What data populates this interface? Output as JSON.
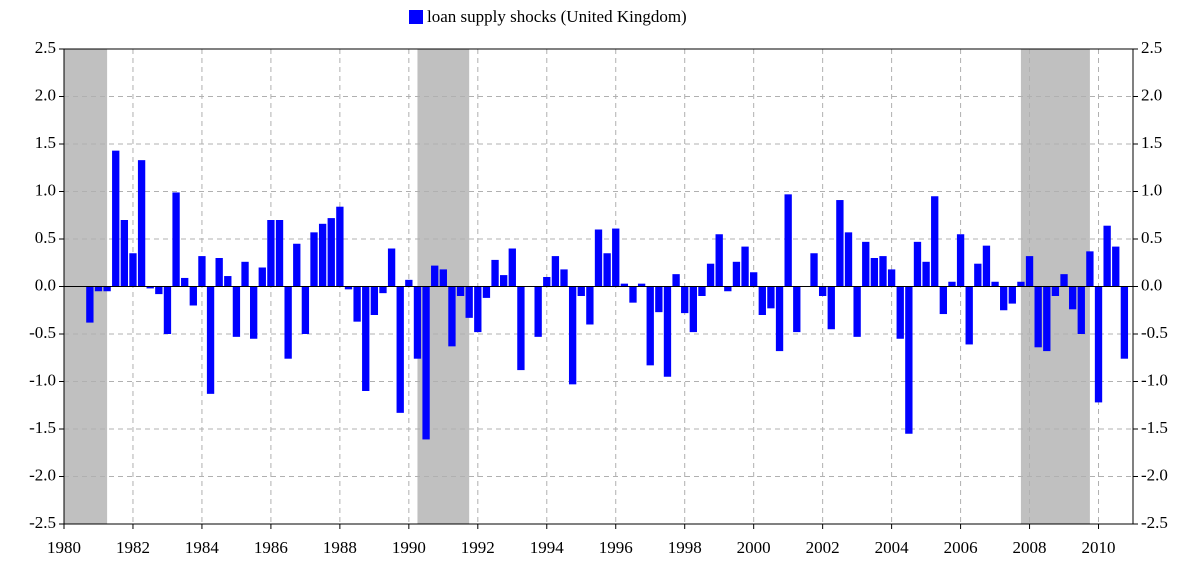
{
  "chart_data": {
    "type": "bar",
    "legend_position": "top",
    "series": [
      {
        "name": "loan supply shocks (United Kingdom)",
        "color": "#0000ff",
        "values": [
          -0.38,
          -0.05,
          -0.05,
          1.43,
          0.7,
          0.35,
          1.33,
          -0.02,
          -0.08,
          -0.5,
          0.99,
          0.09,
          -0.2,
          0.32,
          -1.13,
          0.3,
          0.11,
          -0.53,
          0.26,
          -0.55,
          0.2,
          0.7,
          0.7,
          -0.76,
          0.45,
          -0.5,
          0.57,
          0.66,
          0.72,
          0.84,
          -0.03,
          -0.37,
          -1.1,
          -0.3,
          -0.07,
          0.4,
          -1.33,
          0.07,
          -0.76,
          -1.61,
          0.22,
          0.18,
          -0.63,
          -0.1,
          -0.33,
          -0.48,
          -0.12,
          0.28,
          0.12,
          0.4,
          -0.88,
          0.0,
          -0.53,
          0.1,
          0.32,
          0.18,
          -1.03,
          -0.1,
          -0.4,
          0.6,
          0.35,
          0.61,
          0.03,
          -0.17,
          0.03,
          -0.83,
          -0.27,
          -0.95,
          0.13,
          -0.28,
          -0.48,
          -0.1,
          0.24,
          0.55,
          -0.05,
          0.26,
          0.42,
          0.15,
          -0.3,
          -0.23,
          -0.68,
          0.97,
          -0.48,
          0.0,
          0.35,
          -0.1,
          -0.45,
          0.91,
          0.57,
          -0.53,
          0.47,
          0.3,
          0.32,
          0.18,
          -0.55,
          -1.55,
          0.47,
          0.26,
          0.95,
          -0.29,
          0.05,
          0.55,
          -0.61,
          0.24,
          0.43,
          0.05,
          -0.25,
          -0.18,
          0.05,
          0.32,
          -0.64,
          -0.68,
          -0.1,
          0.13,
          -0.24,
          -0.5,
          0.37,
          -1.22,
          0.64,
          0.42,
          -0.76
        ]
      }
    ],
    "x": [
      1980.75,
      1981,
      1981.25,
      1981.5,
      1981.75,
      1982,
      1982.25,
      1982.5,
      1982.75,
      1983,
      1983.25,
      1983.5,
      1983.75,
      1984,
      1984.25,
      1984.5,
      1984.75,
      1985,
      1985.25,
      1985.5,
      1985.75,
      1986,
      1986.25,
      1986.5,
      1986.75,
      1987,
      1987.25,
      1987.5,
      1987.75,
      1988,
      1988.25,
      1988.5,
      1988.75,
      1989,
      1989.25,
      1989.5,
      1989.75,
      1990,
      1990.25,
      1990.5,
      1990.75,
      1991,
      1991.25,
      1991.5,
      1991.75,
      1992,
      1992.25,
      1992.5,
      1992.75,
      1993,
      1993.25,
      1993.5,
      1993.75,
      1994,
      1994.25,
      1994.5,
      1994.75,
      1995,
      1995.25,
      1995.5,
      1995.75,
      1996,
      1996.25,
      1996.5,
      1996.75,
      1997,
      1997.25,
      1997.5,
      1997.75,
      1998,
      1998.25,
      1998.5,
      1998.75,
      1999,
      1999.25,
      1999.5,
      1999.75,
      2000,
      2000.25,
      2000.5,
      2000.75,
      2001,
      2001.25,
      2001.5,
      2001.75,
      2002,
      2002.25,
      2002.5,
      2002.75,
      2003,
      2003.25,
      2003.5,
      2003.75,
      2004,
      2004.25,
      2004.5,
      2004.75,
      2005,
      2005.25,
      2005.5,
      2005.75,
      2006,
      2006.25,
      2006.5,
      2006.75,
      2007,
      2007.25,
      2007.5,
      2007.75,
      2008,
      2008.25,
      2008.5,
      2008.75,
      2009,
      2009.25,
      2009.5,
      2009.75,
      2010,
      2010.25,
      2010.5,
      2010.75
    ],
    "shaded_regions": [
      [
        1980,
        1981.25
      ],
      [
        1990.25,
        1991.75
      ],
      [
        2007.75,
        2009.75
      ]
    ],
    "shade_color": "#c0c0c0",
    "xlim": [
      1980,
      2011
    ],
    "xticks": [
      1980,
      1982,
      1984,
      1986,
      1988,
      1990,
      1992,
      1994,
      1996,
      1998,
      2000,
      2002,
      2004,
      2006,
      2008,
      2010
    ],
    "ylim": [
      -2.5,
      2.5
    ],
    "yticks": [
      -2.5,
      {
        "value": -2,
        "label": "-2.0"
      },
      -1.5,
      {
        "value": -1,
        "label": "-1.0"
      },
      -0.5,
      {
        "value": 0,
        "label": "0.0"
      },
      0.5,
      {
        "value": 1,
        "label": "1.0"
      },
      1.5,
      {
        "value": 2,
        "label": "2.0"
      },
      2.5
    ],
    "grid": true
  }
}
